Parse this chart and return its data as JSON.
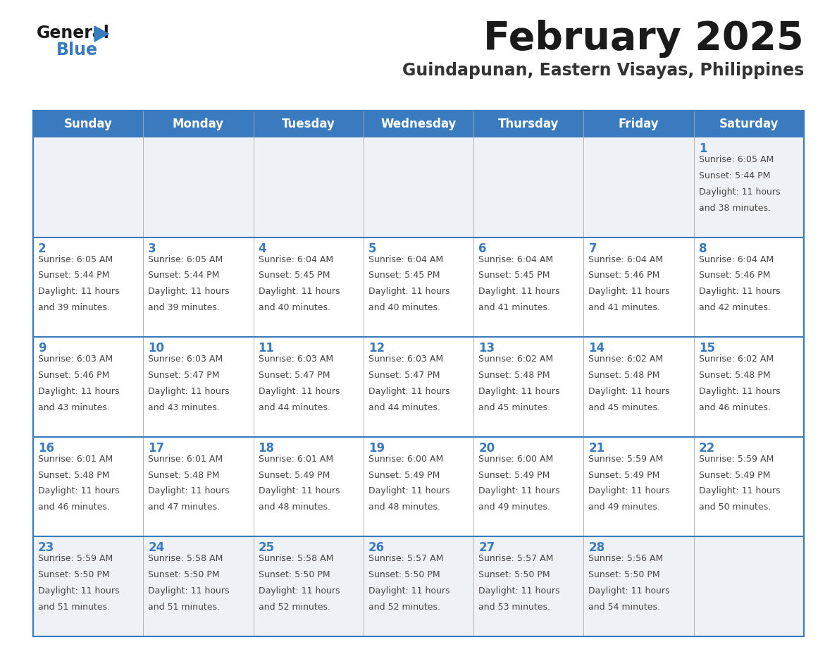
{
  "title": "February 2025",
  "subtitle": "Guindapunan, Eastern Visayas, Philippines",
  "header_bg_color": "#3a7abf",
  "header_text_color": "#ffffff",
  "cell_bg_color": "#ffffff",
  "first_row_bg_color": "#eef2f7",
  "last_row_bg_color": "#eef2f7",
  "border_color": "#3a7abf",
  "row_divider_color": "#3a7abf",
  "day_number_color": "#3a7abf",
  "info_text_color": "#444444",
  "days_of_week": [
    "Sunday",
    "Monday",
    "Tuesday",
    "Wednesday",
    "Thursday",
    "Friday",
    "Saturday"
  ],
  "weeks": [
    [
      {
        "day": null,
        "sunrise": null,
        "sunset": null,
        "daylight": null
      },
      {
        "day": null,
        "sunrise": null,
        "sunset": null,
        "daylight": null
      },
      {
        "day": null,
        "sunrise": null,
        "sunset": null,
        "daylight": null
      },
      {
        "day": null,
        "sunrise": null,
        "sunset": null,
        "daylight": null
      },
      {
        "day": null,
        "sunrise": null,
        "sunset": null,
        "daylight": null
      },
      {
        "day": null,
        "sunrise": null,
        "sunset": null,
        "daylight": null
      },
      {
        "day": 1,
        "sunrise": "6:05 AM",
        "sunset": "5:44 PM",
        "daylight": "11 hours and 38 minutes."
      }
    ],
    [
      {
        "day": 2,
        "sunrise": "6:05 AM",
        "sunset": "5:44 PM",
        "daylight": "11 hours and 39 minutes."
      },
      {
        "day": 3,
        "sunrise": "6:05 AM",
        "sunset": "5:44 PM",
        "daylight": "11 hours and 39 minutes."
      },
      {
        "day": 4,
        "sunrise": "6:04 AM",
        "sunset": "5:45 PM",
        "daylight": "11 hours and 40 minutes."
      },
      {
        "day": 5,
        "sunrise": "6:04 AM",
        "sunset": "5:45 PM",
        "daylight": "11 hours and 40 minutes."
      },
      {
        "day": 6,
        "sunrise": "6:04 AM",
        "sunset": "5:45 PM",
        "daylight": "11 hours and 41 minutes."
      },
      {
        "day": 7,
        "sunrise": "6:04 AM",
        "sunset": "5:46 PM",
        "daylight": "11 hours and 41 minutes."
      },
      {
        "day": 8,
        "sunrise": "6:04 AM",
        "sunset": "5:46 PM",
        "daylight": "11 hours and 42 minutes."
      }
    ],
    [
      {
        "day": 9,
        "sunrise": "6:03 AM",
        "sunset": "5:46 PM",
        "daylight": "11 hours and 43 minutes."
      },
      {
        "day": 10,
        "sunrise": "6:03 AM",
        "sunset": "5:47 PM",
        "daylight": "11 hours and 43 minutes."
      },
      {
        "day": 11,
        "sunrise": "6:03 AM",
        "sunset": "5:47 PM",
        "daylight": "11 hours and 44 minutes."
      },
      {
        "day": 12,
        "sunrise": "6:03 AM",
        "sunset": "5:47 PM",
        "daylight": "11 hours and 44 minutes."
      },
      {
        "day": 13,
        "sunrise": "6:02 AM",
        "sunset": "5:48 PM",
        "daylight": "11 hours and 45 minutes."
      },
      {
        "day": 14,
        "sunrise": "6:02 AM",
        "sunset": "5:48 PM",
        "daylight": "11 hours and 45 minutes."
      },
      {
        "day": 15,
        "sunrise": "6:02 AM",
        "sunset": "5:48 PM",
        "daylight": "11 hours and 46 minutes."
      }
    ],
    [
      {
        "day": 16,
        "sunrise": "6:01 AM",
        "sunset": "5:48 PM",
        "daylight": "11 hours and 46 minutes."
      },
      {
        "day": 17,
        "sunrise": "6:01 AM",
        "sunset": "5:48 PM",
        "daylight": "11 hours and 47 minutes."
      },
      {
        "day": 18,
        "sunrise": "6:01 AM",
        "sunset": "5:49 PM",
        "daylight": "11 hours and 48 minutes."
      },
      {
        "day": 19,
        "sunrise": "6:00 AM",
        "sunset": "5:49 PM",
        "daylight": "11 hours and 48 minutes."
      },
      {
        "day": 20,
        "sunrise": "6:00 AM",
        "sunset": "5:49 PM",
        "daylight": "11 hours and 49 minutes."
      },
      {
        "day": 21,
        "sunrise": "5:59 AM",
        "sunset": "5:49 PM",
        "daylight": "11 hours and 49 minutes."
      },
      {
        "day": 22,
        "sunrise": "5:59 AM",
        "sunset": "5:49 PM",
        "daylight": "11 hours and 50 minutes."
      }
    ],
    [
      {
        "day": 23,
        "sunrise": "5:59 AM",
        "sunset": "5:50 PM",
        "daylight": "11 hours and 51 minutes."
      },
      {
        "day": 24,
        "sunrise": "5:58 AM",
        "sunset": "5:50 PM",
        "daylight": "11 hours and 51 minutes."
      },
      {
        "day": 25,
        "sunrise": "5:58 AM",
        "sunset": "5:50 PM",
        "daylight": "11 hours and 52 minutes."
      },
      {
        "day": 26,
        "sunrise": "5:57 AM",
        "sunset": "5:50 PM",
        "daylight": "11 hours and 52 minutes."
      },
      {
        "day": 27,
        "sunrise": "5:57 AM",
        "sunset": "5:50 PM",
        "daylight": "11 hours and 53 minutes."
      },
      {
        "day": 28,
        "sunrise": "5:56 AM",
        "sunset": "5:50 PM",
        "daylight": "11 hours and 54 minutes."
      },
      {
        "day": null,
        "sunrise": null,
        "sunset": null,
        "daylight": null
      }
    ]
  ],
  "logo_general_color": "#1a1a1a",
  "logo_blue_color": "#3a7abf",
  "title_fontsize": 40,
  "subtitle_fontsize": 17,
  "header_fontsize": 12,
  "day_number_fontsize": 12,
  "info_fontsize": 9
}
